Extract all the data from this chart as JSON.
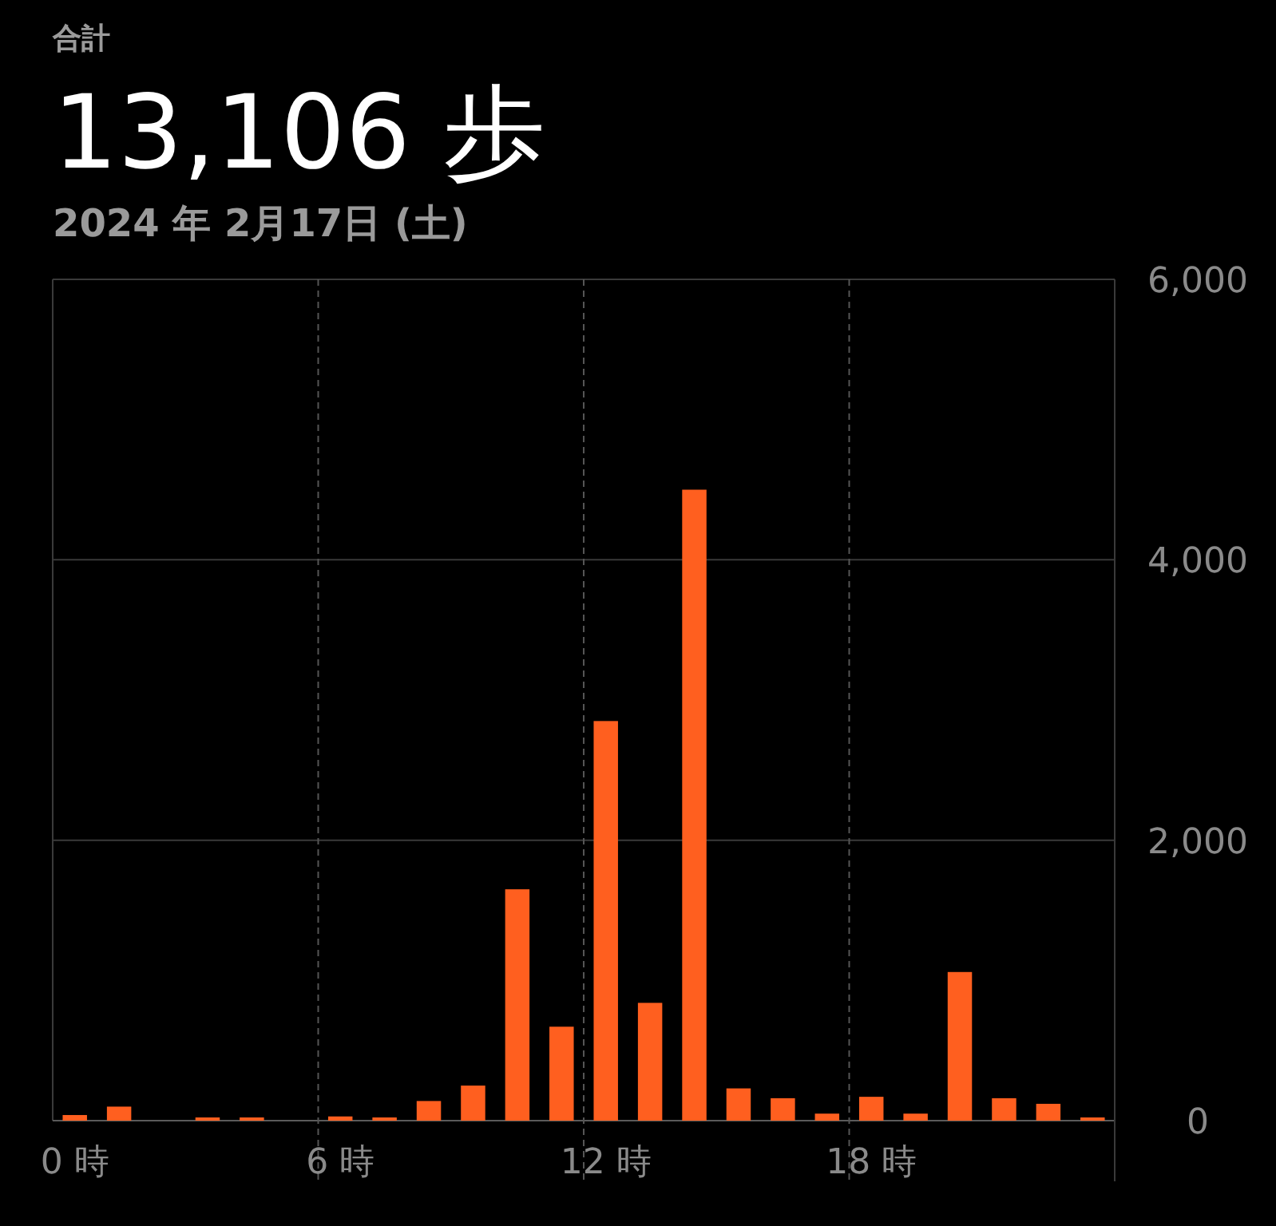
{
  "chart_data": {
    "type": "bar",
    "title": "合計",
    "subtitle": "13,106 歩",
    "annotations": [
      "2024 年 2月17日 (土)"
    ],
    "categories": [
      "0 時",
      null,
      null,
      null,
      null,
      null,
      "6 時",
      null,
      null,
      null,
      null,
      null,
      "12 時",
      null,
      null,
      null,
      null,
      null,
      "18 時",
      null,
      null,
      null,
      null,
      null
    ],
    "values": [
      40,
      100,
      0,
      10,
      10,
      0,
      30,
      10,
      140,
      250,
      1650,
      670,
      2850,
      840,
      4500,
      230,
      160,
      50,
      170,
      50,
      1060,
      160,
      120,
      20
    ],
    "color": "#ff5f1f",
    "ylim": [
      0,
      6000
    ],
    "yticks": [
      {
        "value": 0,
        "label": "0"
      },
      {
        "value": 2000,
        "label": "2,000"
      },
      {
        "value": 4000,
        "label": "4,000"
      },
      {
        "value": 6000,
        "label": "6,000"
      }
    ],
    "grid": true
  }
}
